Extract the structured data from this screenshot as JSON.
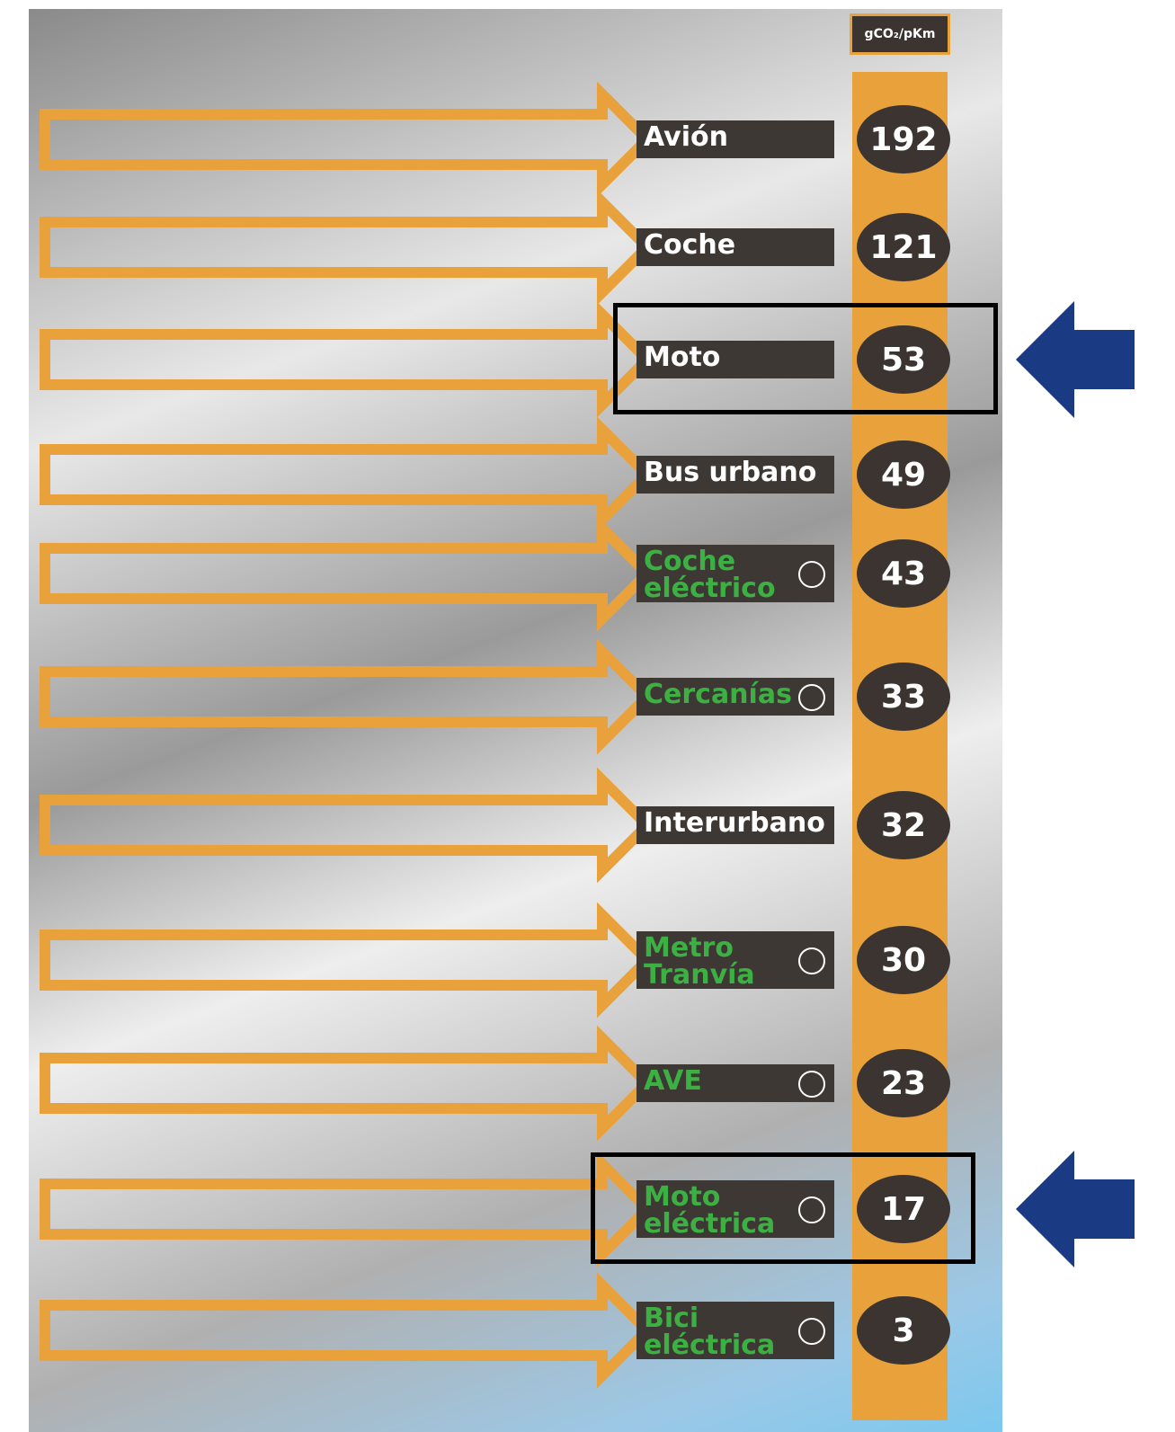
{
  "unit": "gCO₂/pKm",
  "rows": [
    {
      "label": "Avión",
      "value": 192,
      "electric": false,
      "highlight": false
    },
    {
      "label": "Coche",
      "value": 121,
      "electric": false,
      "highlight": false
    },
    {
      "label": "Moto",
      "value": 53,
      "electric": false,
      "highlight": true
    },
    {
      "label": "Bus urbano",
      "value": 49,
      "electric": false,
      "highlight": false
    },
    {
      "label": "Coche\neléctrico",
      "value": 43,
      "electric": true,
      "highlight": false
    },
    {
      "label": "Cercanías",
      "value": 33,
      "electric": true,
      "highlight": false
    },
    {
      "label": "Interurbano",
      "value": 32,
      "electric": false,
      "highlight": false
    },
    {
      "label": "Metro\nTranvía",
      "value": 30,
      "electric": true,
      "highlight": false
    },
    {
      "label": "AVE",
      "value": 23,
      "electric": true,
      "highlight": false
    },
    {
      "label": "Moto\neléctrica",
      "value": 17,
      "electric": true,
      "highlight": true
    },
    {
      "label": "Bici\neléctrica",
      "value": 3,
      "electric": true,
      "highlight": false
    }
  ]
}
